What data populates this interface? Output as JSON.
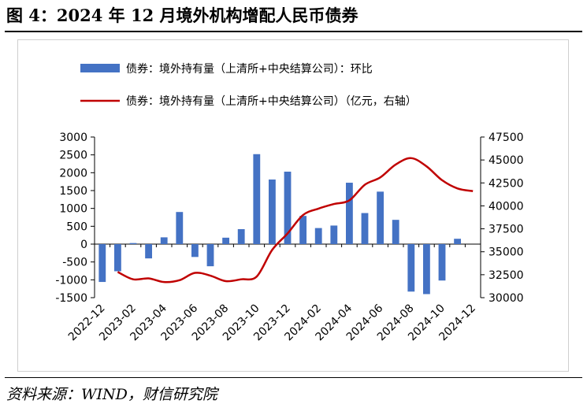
{
  "figure_title": "图 4：2024 年 12 月境外机构增配人民币债券",
  "source_note": "资料来源：WIND，财信研究院",
  "chart_data": {
    "type": "bar+line",
    "x": [
      "2022-12",
      "2023-01",
      "2023-02",
      "2023-03",
      "2023-04",
      "2023-05",
      "2023-06",
      "2023-07",
      "2023-08",
      "2023-09",
      "2023-10",
      "2023-11",
      "2023-12",
      "2024-01",
      "2024-02",
      "2024-03",
      "2024-04",
      "2024-05",
      "2024-06",
      "2024-07",
      "2024-08",
      "2024-09",
      "2024-10",
      "2024-11",
      "2024-12"
    ],
    "x_tick_labels": [
      "2022-12",
      "2023-02",
      "2023-04",
      "2023-06",
      "2023-08",
      "2023-10",
      "2023-12",
      "2024-02",
      "2024-04",
      "2024-06",
      "2024-08",
      "2024-10",
      "2024-12"
    ],
    "series": [
      {
        "name": "债券：境外持有量（上清所+中央结算公司）：环比",
        "kind": "bar",
        "axis": "left",
        "color": "#4472C4",
        "values": [
          -1060,
          -760,
          30,
          -400,
          190,
          900,
          -360,
          -620,
          180,
          420,
          2520,
          1810,
          2030,
          790,
          450,
          520,
          1720,
          870,
          1470,
          680,
          -1330,
          -1400,
          -1020,
          150,
          null
        ]
      },
      {
        "name": "债券：境外持有量（上清所+中央结算公司）（亿元，右轴）",
        "kind": "line",
        "axis": "right",
        "color": "#C00000",
        "values": [
          null,
          32800,
          32000,
          32100,
          31700,
          31900,
          32700,
          32400,
          31800,
          32000,
          32300,
          35200,
          37000,
          39000,
          39700,
          40200,
          40600,
          42300,
          43100,
          44500,
          45200,
          44300,
          42800,
          41900,
          41600
        ]
      }
    ],
    "y_left": {
      "min": -1500,
      "max": 3000,
      "ticks": [
        3000,
        2500,
        2000,
        1500,
        1000,
        500,
        0,
        -500,
        -1000,
        -1500
      ]
    },
    "y_right": {
      "min": 30000,
      "max": 47500,
      "ticks": [
        47500,
        45000,
        42500,
        40000,
        37500,
        35000,
        32500,
        30000
      ]
    },
    "legend_position": "top-left",
    "grid": false
  }
}
